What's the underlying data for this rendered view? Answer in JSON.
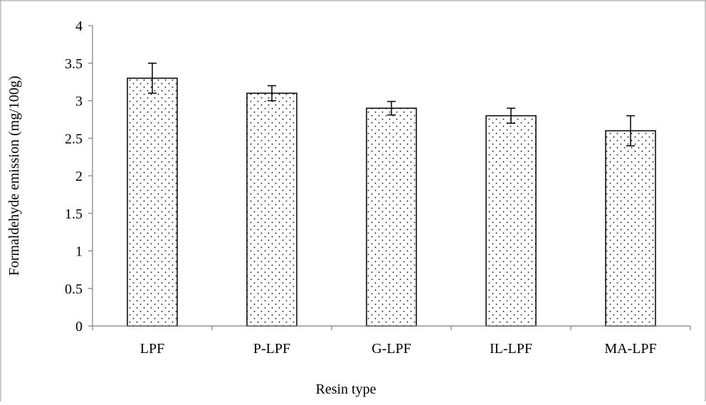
{
  "chart_data": {
    "type": "bar",
    "title": "",
    "xlabel": "Resin type",
    "ylabel": "Formaldehyde emission (mg/100g)",
    "categories": [
      "LPF",
      "P-LPF",
      "G-LPF",
      "IL-LPF",
      "MA-LPF"
    ],
    "values": [
      3.3,
      3.1,
      2.9,
      2.8,
      2.6
    ],
    "error": [
      0.2,
      0.1,
      0.09,
      0.1,
      0.2
    ],
    "ylim": [
      0,
      4
    ],
    "yticks": [
      "0",
      "0.5",
      "1",
      "1.5",
      "2",
      "2.5",
      "3",
      "3.5",
      "4"
    ],
    "grid": false,
    "legend": "none",
    "bar_fill": "dotted pattern",
    "colors": {
      "bar_stroke": "#000000",
      "dot": "#000000",
      "axis": "#7f7f7f",
      "frame": "#9a9a9a"
    }
  }
}
